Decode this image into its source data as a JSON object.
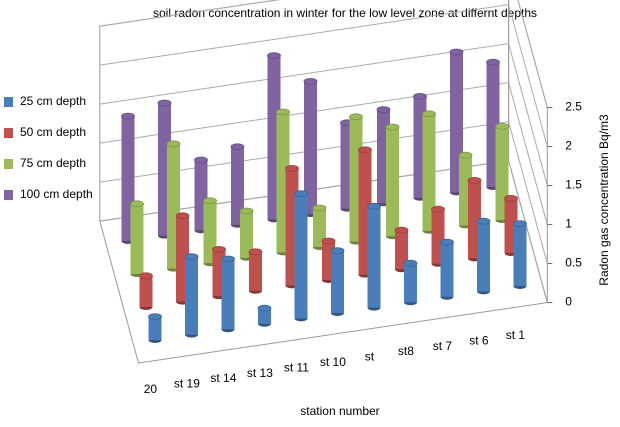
{
  "chart_data": {
    "type": "bar3d",
    "title": "soil radon concentration in winter for the low level zone at differnt depths",
    "x_label": "station number",
    "y_label": "Radon gas concentration Bq/m3",
    "categories": [
      "20",
      "st 19",
      "st 14",
      "st 13",
      "st 11",
      "st 10",
      "st",
      "st8",
      "st 7",
      "st 6",
      "st 1"
    ],
    "series": [
      {
        "name": "25 cm depth",
        "color": "#4a7ebb",
        "values": [
          0.3,
          1.0,
          0.9,
          0.2,
          1.6,
          0.8,
          1.3,
          0.5,
          0.7,
          0.9,
          0.8
        ]
      },
      {
        "name": "50 cm depth",
        "color": "#c0504d",
        "values": [
          0.4,
          1.1,
          0.6,
          0.5,
          1.5,
          0.5,
          1.6,
          0.5,
          0.7,
          1.0,
          0.7
        ]
      },
      {
        "name": "75 cm depth",
        "color": "#9bbb59",
        "values": [
          0.9,
          1.6,
          0.8,
          0.6,
          1.8,
          0.5,
          1.6,
          1.4,
          1.5,
          0.9,
          1.2
        ]
      },
      {
        "name": "100 cm depth",
        "color": "#8064a2",
        "values": [
          1.6,
          1.7,
          0.9,
          1.0,
          2.1,
          1.7,
          1.1,
          1.2,
          1.3,
          1.8,
          1.6
        ]
      }
    ],
    "ylim": [
      0,
      2.5
    ],
    "yticks": [
      0,
      0.5,
      1,
      1.5,
      2,
      2.5
    ],
    "grid": true
  }
}
